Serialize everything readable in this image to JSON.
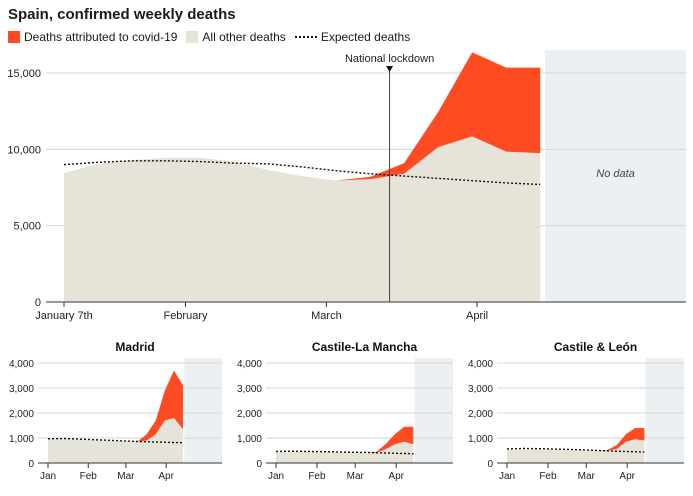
{
  "title": "Spain, confirmed weekly deaths",
  "legend": {
    "covid": "Deaths attributed to covid-19",
    "other": "All other deaths",
    "expected": "Expected deaths"
  },
  "colors": {
    "covid": "#ff4b22",
    "other": "#e6e4d8",
    "nodata": "#ecf0f2",
    "expected": "#111111",
    "grid": "#d6d6d6"
  },
  "main": {
    "annotation_lockdown": "National lockdown",
    "annotation_nodata": "No data"
  },
  "chart_data": [
    {
      "type": "area",
      "title": "Spain, confirmed weekly deaths",
      "x_tick_labels": [
        "January 7th",
        "February",
        "March",
        "April"
      ],
      "x_tick_dates": [
        "2020-01-07",
        "2020-02-01",
        "2020-03-01",
        "2020-04-01"
      ],
      "x_range": [
        "2020-01-07",
        "2020-05-14"
      ],
      "no_data_from": "2020-04-15",
      "lockdown_date": "2020-03-14",
      "y_ticks": [
        0,
        5000,
        10000,
        15000
      ],
      "y_tick_labels": [
        "0",
        "5,000",
        "10,000",
        "15,000"
      ],
      "ylim": [
        0,
        17000
      ],
      "grid": true,
      "legend_position": "top-left",
      "series": [
        {
          "name": "All other deaths",
          "x": [
            "2020-01-07",
            "2020-01-14",
            "2020-01-21",
            "2020-01-28",
            "2020-02-04",
            "2020-02-11",
            "2020-02-18",
            "2020-02-25",
            "2020-03-03",
            "2020-03-10",
            "2020-03-17",
            "2020-03-24",
            "2020-03-31",
            "2020-04-07",
            "2020-04-14"
          ],
          "values": [
            8450,
            9050,
            9300,
            9450,
            9450,
            9200,
            8650,
            8250,
            7950,
            8050,
            8400,
            10150,
            10850,
            9850,
            9750
          ]
        },
        {
          "name": "Deaths attributed to covid-19",
          "x": [
            "2020-03-03",
            "2020-03-10",
            "2020-03-17",
            "2020-03-24",
            "2020-03-31",
            "2020-04-07",
            "2020-04-14"
          ],
          "values": [
            0,
            150,
            700,
            2300,
            5500,
            5500,
            5600
          ]
        },
        {
          "name": "Expected deaths",
          "x": [
            "2020-01-07",
            "2020-01-14",
            "2020-01-21",
            "2020-01-28",
            "2020-02-04",
            "2020-02-11",
            "2020-02-18",
            "2020-02-25",
            "2020-03-03",
            "2020-03-10",
            "2020-03-17",
            "2020-03-24",
            "2020-03-31",
            "2020-04-07",
            "2020-04-14"
          ],
          "values": [
            9000,
            9150,
            9250,
            9250,
            9200,
            9100,
            9050,
            8850,
            8600,
            8400,
            8250,
            8100,
            7950,
            7800,
            7700
          ]
        }
      ]
    },
    {
      "type": "area",
      "title": "Madrid",
      "x_tick_labels": [
        "Jan",
        "Feb",
        "Mar",
        "Apr"
      ],
      "x_tick_dates": [
        "2020-01-01",
        "2020-02-01",
        "2020-03-01",
        "2020-04-01"
      ],
      "x_range": [
        "2020-01-01",
        "2020-05-14"
      ],
      "no_data_from": "2020-04-15",
      "y_ticks": [
        0,
        1000,
        2000,
        3000,
        4000
      ],
      "y_tick_labels": [
        "0",
        "1,000",
        "2,000",
        "3,000",
        "4,000"
      ],
      "ylim": [
        0,
        4000
      ],
      "series": [
        {
          "name": "All other deaths",
          "x": [
            "2020-01-01",
            "2020-01-14",
            "2020-01-28",
            "2020-02-11",
            "2020-02-25",
            "2020-03-10",
            "2020-03-17",
            "2020-03-24",
            "2020-03-31",
            "2020-04-07",
            "2020-04-14"
          ],
          "values": [
            950,
            970,
            920,
            890,
            880,
            860,
            900,
            1150,
            1700,
            1800,
            1350
          ]
        },
        {
          "name": "Deaths attributed to covid-19",
          "x": [
            "2020-03-10",
            "2020-03-17",
            "2020-03-24",
            "2020-03-31",
            "2020-04-07",
            "2020-04-14"
          ],
          "values": [
            0,
            250,
            550,
            1200,
            1900,
            1750
          ]
        },
        {
          "name": "Expected deaths",
          "x": [
            "2020-01-01",
            "2020-01-14",
            "2020-01-28",
            "2020-02-11",
            "2020-02-25",
            "2020-03-10",
            "2020-03-24",
            "2020-04-07",
            "2020-04-14"
          ],
          "values": [
            970,
            980,
            950,
            920,
            890,
            860,
            840,
            820,
            810
          ]
        }
      ]
    },
    {
      "type": "area",
      "title": "Castile-La Mancha",
      "x_tick_labels": [
        "Jan",
        "Feb",
        "Mar",
        "Apr"
      ],
      "x_tick_dates": [
        "2020-01-01",
        "2020-02-01",
        "2020-03-01",
        "2020-04-01"
      ],
      "x_range": [
        "2020-01-01",
        "2020-05-14"
      ],
      "no_data_from": "2020-04-15",
      "y_ticks": [
        0,
        1000,
        2000,
        3000,
        4000
      ],
      "y_tick_labels": [
        "0",
        "1,000",
        "2,000",
        "3,000",
        "4,000"
      ],
      "ylim": [
        0,
        4000
      ],
      "series": [
        {
          "name": "All other deaths",
          "x": [
            "2020-01-01",
            "2020-01-14",
            "2020-01-28",
            "2020-02-11",
            "2020-02-25",
            "2020-03-10",
            "2020-03-17",
            "2020-03-24",
            "2020-03-31",
            "2020-04-07",
            "2020-04-14"
          ],
          "values": [
            420,
            440,
            440,
            430,
            420,
            400,
            410,
            550,
            750,
            850,
            750
          ]
        },
        {
          "name": "Deaths attributed to covid-19",
          "x": [
            "2020-03-10",
            "2020-03-17",
            "2020-03-24",
            "2020-03-31",
            "2020-04-07",
            "2020-04-14"
          ],
          "values": [
            0,
            40,
            200,
            400,
            600,
            700
          ]
        },
        {
          "name": "Expected deaths",
          "x": [
            "2020-01-01",
            "2020-01-14",
            "2020-01-28",
            "2020-02-11",
            "2020-02-25",
            "2020-03-10",
            "2020-03-24",
            "2020-04-07",
            "2020-04-14"
          ],
          "values": [
            460,
            470,
            460,
            450,
            430,
            420,
            400,
            380,
            370
          ]
        }
      ]
    },
    {
      "type": "area",
      "title": "Castile & León",
      "x_tick_labels": [
        "Jan",
        "Feb",
        "Mar",
        "Apr"
      ],
      "x_tick_dates": [
        "2020-01-01",
        "2020-02-01",
        "2020-03-01",
        "2020-04-01"
      ],
      "x_range": [
        "2020-01-01",
        "2020-05-14"
      ],
      "no_data_from": "2020-04-15",
      "y_ticks": [
        0,
        1000,
        2000,
        3000,
        4000
      ],
      "y_tick_labels": [
        "0",
        "1,000",
        "2,000",
        "3,000",
        "4,000"
      ],
      "ylim": [
        0,
        4000
      ],
      "series": [
        {
          "name": "All other deaths",
          "x": [
            "2020-01-01",
            "2020-01-14",
            "2020-01-28",
            "2020-02-11",
            "2020-02-25",
            "2020-03-10",
            "2020-03-17",
            "2020-03-24",
            "2020-03-31",
            "2020-04-07",
            "2020-04-14"
          ],
          "values": [
            520,
            540,
            540,
            520,
            500,
            480,
            490,
            560,
            850,
            950,
            900
          ]
        },
        {
          "name": "Deaths attributed to covid-19",
          "x": [
            "2020-03-10",
            "2020-03-17",
            "2020-03-24",
            "2020-03-31",
            "2020-04-07",
            "2020-04-14"
          ],
          "values": [
            0,
            30,
            150,
            300,
            450,
            500
          ]
        },
        {
          "name": "Expected deaths",
          "x": [
            "2020-01-01",
            "2020-01-14",
            "2020-01-28",
            "2020-02-11",
            "2020-02-25",
            "2020-03-10",
            "2020-03-24",
            "2020-04-07",
            "2020-04-14"
          ],
          "values": [
            560,
            580,
            570,
            550,
            530,
            500,
            470,
            450,
            440
          ]
        }
      ]
    }
  ]
}
